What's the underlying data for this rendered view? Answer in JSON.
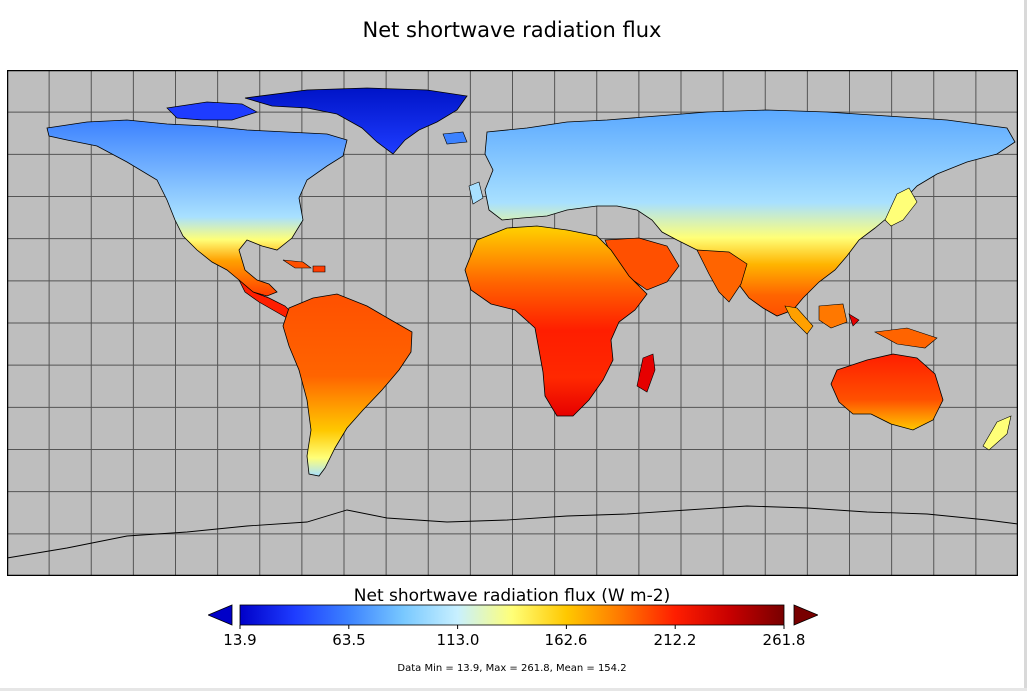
{
  "title": "Net shortwave radiation flux",
  "colorbar": {
    "title": "Net shortwave radiation flux (W m-2)",
    "ticks": [
      "13.9",
      "63.5",
      "113.0",
      "162.6",
      "212.2",
      "261.8"
    ],
    "min": 13.9,
    "max": 261.8,
    "colors": [
      "#0000c8",
      "#1e3cff",
      "#3c82ff",
      "#78c8ff",
      "#c8f0ff",
      "#ffff78",
      "#ffc800",
      "#ff7800",
      "#ff1e00",
      "#c80000",
      "#780000"
    ],
    "under_color": "#0000c8",
    "over_color": "#780000"
  },
  "stats": "Data Min = 13.9, Max = 261.8, Mean = 154.2",
  "map": {
    "ocean_color": "#bebebe",
    "grid": true,
    "projection_extent": {
      "lon": [
        -180,
        180
      ],
      "lat": [
        -90,
        90
      ]
    }
  }
}
